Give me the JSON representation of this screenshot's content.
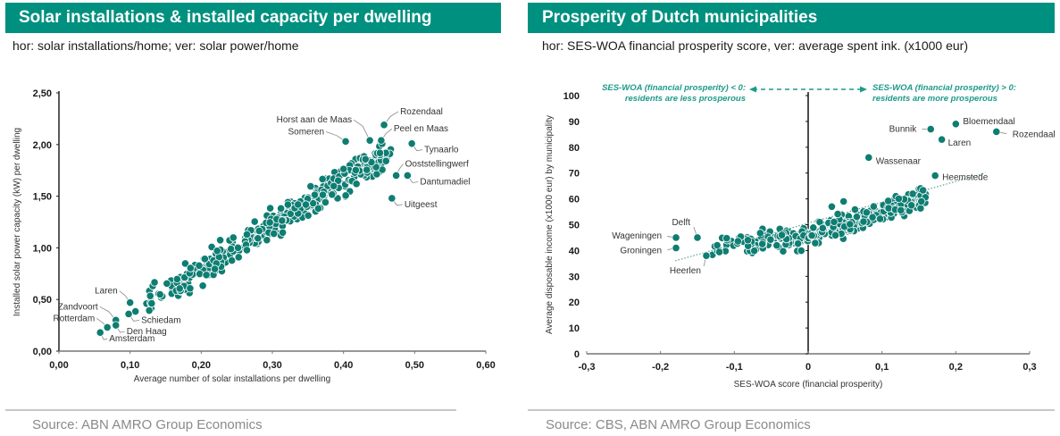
{
  "left_panel": {
    "title": "Solar installations & installed capacity per dwelling",
    "subtitle": "hor: solar installations/home; ver: solar power/home",
    "source": "Source: ABN AMRO Group Economics"
  },
  "right_panel": {
    "title": "Prosperity of Dutch municipalities",
    "subtitle": "hor: SES-WOA financial prosperity score, ver: average spent ink. (x1000 eur)",
    "source": "Source: CBS, ABN AMRO Group Economics"
  },
  "colors": {
    "header_bg": "#00907f",
    "point": "#0e7d72",
    "annotation": "#1d9a8a",
    "source_text": "#8a8a8a"
  },
  "chart_data": [
    {
      "type": "scatter",
      "title": "Solar installations & installed capacity per dwelling",
      "xlabel": "Average number of solar installations per dwelling",
      "ylabel": "Installed solar power capacity (kW) per dwelling",
      "xlim": [
        0,
        0.6
      ],
      "ylim": [
        0,
        2.5
      ],
      "xticks": [
        "0,00",
        "0,10",
        "0,20",
        "0,30",
        "0,40",
        "0,50",
        "0,60"
      ],
      "yticks": [
        "0,00",
        "0,50",
        "1,00",
        "1,50",
        "2,00",
        "2,50"
      ],
      "grid": false,
      "labeled_points": [
        {
          "name": "Rozendaal",
          "x": 0.457,
          "y": 2.19
        },
        {
          "name": "Horst aan de Maas",
          "x": 0.437,
          "y": 2.04
        },
        {
          "name": "Peel en Maas",
          "x": 0.453,
          "y": 2.04
        },
        {
          "name": "Someren",
          "x": 0.403,
          "y": 2.03
        },
        {
          "name": "Tynaarlo",
          "x": 0.496,
          "y": 2.01
        },
        {
          "name": "Ooststellingwerf",
          "x": 0.474,
          "y": 1.7
        },
        {
          "name": "Dantumadiel",
          "x": 0.49,
          "y": 1.7
        },
        {
          "name": "Uitgeest",
          "x": 0.468,
          "y": 1.48
        },
        {
          "name": "Laren",
          "x": 0.1,
          "y": 0.47
        },
        {
          "name": "Schiedam",
          "x": 0.098,
          "y": 0.36
        },
        {
          "name": "Zandvoort",
          "x": 0.08,
          "y": 0.3
        },
        {
          "name": "Den Haag",
          "x": 0.08,
          "y": 0.25
        },
        {
          "name": "Rotterdam",
          "x": 0.068,
          "y": 0.23
        },
        {
          "name": "Amsterdam",
          "x": 0.058,
          "y": 0.18
        }
      ],
      "cluster": {
        "description": "approx. 350 unlabeled municipalities along a linear trend",
        "count": 350,
        "x_range": [
          0.12,
          0.46
        ],
        "trend": {
          "slope": 4.3,
          "intercept": -0.07
        },
        "spread_y": 0.13
      }
    },
    {
      "type": "scatter",
      "title": "Prosperity of Dutch municipalities",
      "xlabel": "SES-WOA score (financial prosperity)",
      "ylabel": "Average disposable income (x1000 eur) by municipality",
      "xlim": [
        -0.3,
        0.3
      ],
      "ylim": [
        0,
        100
      ],
      "xticks": [
        "-0,3",
        "-0,2",
        "-0,1",
        "0",
        "0,1",
        "0,2",
        "0,3"
      ],
      "yticks": [
        "0",
        "10",
        "20",
        "30",
        "40",
        "50",
        "60",
        "70",
        "80",
        "90",
        "100"
      ],
      "grid": false,
      "annotations": [
        {
          "text_line1": "SES-WOA (financial prosperity) < 0:",
          "text_line2": "residents are less prosperous",
          "side": "left"
        },
        {
          "text_line1": "SES-WOA (financial prosperity) > 0:",
          "text_line2": "residents are more prosperous",
          "side": "right"
        }
      ],
      "trendline": {
        "style": "dotted",
        "x": [
          -0.18,
          0.24
        ],
        "y": [
          36,
          70
        ]
      },
      "labeled_points": [
        {
          "name": "Bloemendaal",
          "x": 0.2,
          "y": 89
        },
        {
          "name": "Rozendaal",
          "x": 0.255,
          "y": 86
        },
        {
          "name": "Bunnik",
          "x": 0.166,
          "y": 87
        },
        {
          "name": "Laren",
          "x": 0.181,
          "y": 83
        },
        {
          "name": "Wassenaar",
          "x": 0.082,
          "y": 76
        },
        {
          "name": "Heemstede",
          "x": 0.172,
          "y": 69
        },
        {
          "name": "Delft",
          "x": -0.15,
          "y": 45
        },
        {
          "name": "Wageningen",
          "x": -0.179,
          "y": 45
        },
        {
          "name": "Groningen",
          "x": -0.179,
          "y": 41
        },
        {
          "name": "Heerlen",
          "x": -0.138,
          "y": 38
        }
      ],
      "cluster": {
        "description": "approx. 340 unlabeled municipalities, flat-then-rising pattern",
        "count": 340,
        "x_range": [
          -0.13,
          0.16
        ],
        "spread_y": 3.5
      }
    }
  ]
}
